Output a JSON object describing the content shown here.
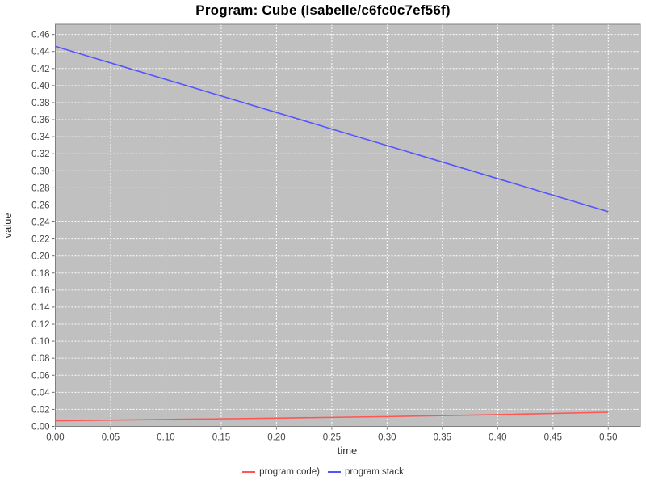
{
  "title": "Program: Cube (Isabelle/c6fc0c7ef56f)",
  "chart_data": {
    "type": "line",
    "title": "Program: Cube (Isabelle/c6fc0c7ef56f)",
    "xlabel": "time",
    "ylabel": "value",
    "xlim": [
      0,
      0.529
    ],
    "ylim": [
      0,
      0.472
    ],
    "xticks": [
      0.0,
      0.05,
      0.1,
      0.15,
      0.2,
      0.25,
      0.3,
      0.35,
      0.4,
      0.45,
      0.5
    ],
    "yticks": [
      0.0,
      0.02,
      0.04,
      0.06,
      0.08,
      0.1,
      0.12,
      0.14,
      0.16,
      0.18,
      0.2,
      0.22,
      0.24,
      0.26,
      0.28,
      0.3,
      0.32,
      0.34,
      0.36,
      0.38,
      0.4,
      0.42,
      0.44,
      0.46
    ],
    "grid": true,
    "legend_position": "bottom",
    "colors": {
      "plot_background": "#c0c0c0",
      "gridline": "#ffffff",
      "plot_border": "#7f7f7f",
      "tick": "#666666"
    },
    "series": [
      {
        "name": "program code)",
        "color": "#ff5555",
        "points": [
          [
            0.0,
            0.0066
          ],
          [
            0.1,
            0.0081
          ],
          [
            0.2,
            0.0097
          ],
          [
            0.3,
            0.0115
          ],
          [
            0.4,
            0.0138
          ],
          [
            0.5,
            0.0166
          ]
        ]
      },
      {
        "name": "program stack",
        "color": "#5555ff",
        "points": [
          [
            0.0,
            0.446
          ],
          [
            0.25,
            0.349
          ],
          [
            0.5,
            0.252
          ]
        ]
      }
    ]
  }
}
